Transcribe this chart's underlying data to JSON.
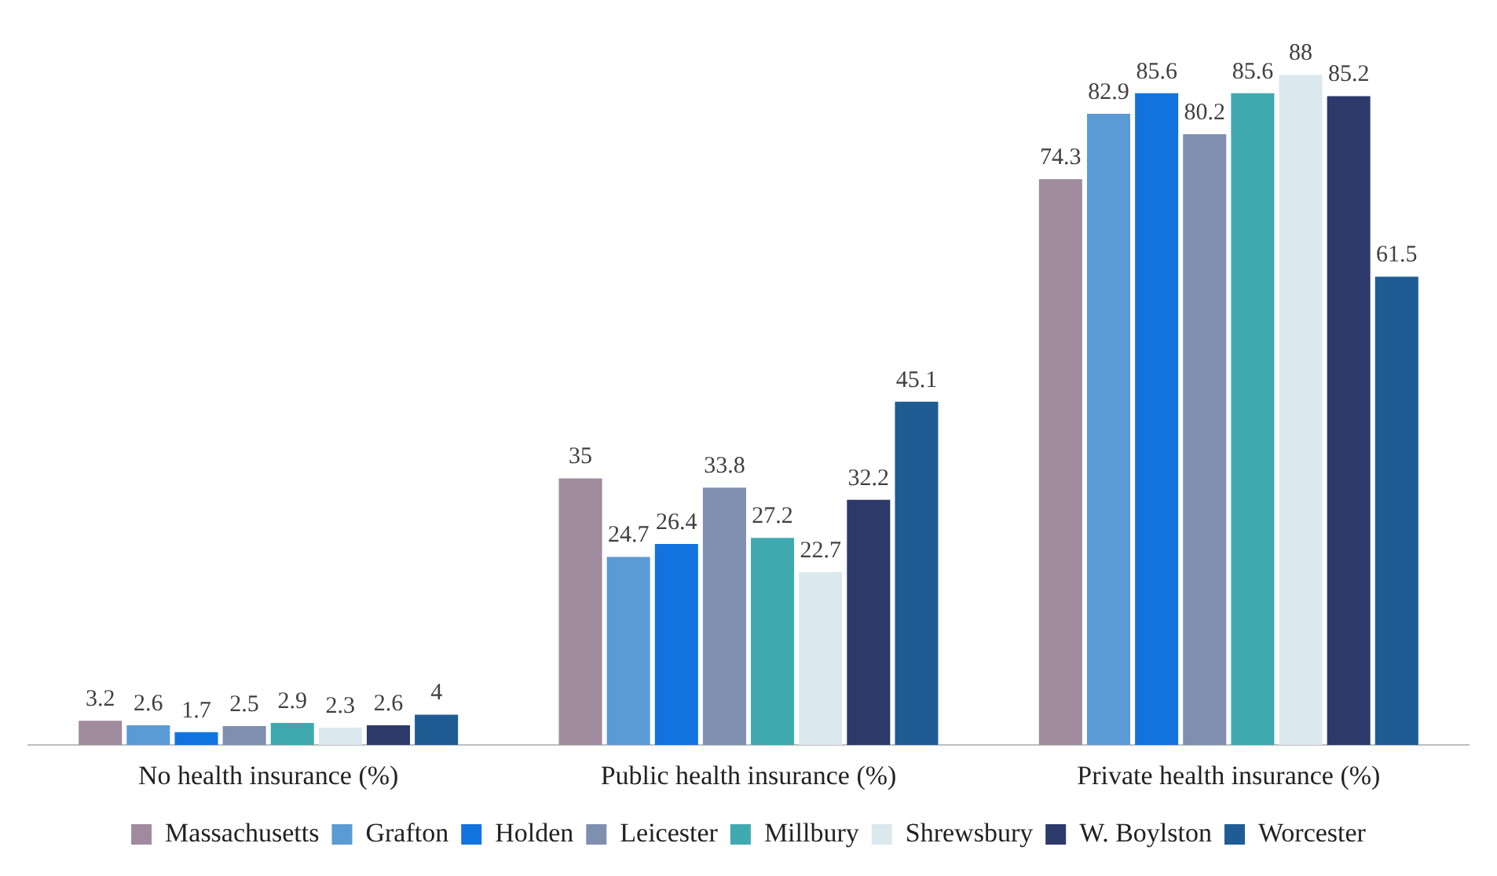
{
  "chart_data": {
    "type": "bar",
    "categories": [
      "No health insurance (%)",
      "Public health insurance (%)",
      "Private health insurance (%)"
    ],
    "series": [
      {
        "name": "Massachusetts",
        "color": "#a08a9e",
        "values": [
          3.2,
          35,
          74.3
        ]
      },
      {
        "name": "Grafton",
        "color": "#5b9bd5",
        "values": [
          2.6,
          24.7,
          82.9
        ]
      },
      {
        "name": "Holden",
        "color": "#1273de",
        "values": [
          1.7,
          26.4,
          85.6
        ]
      },
      {
        "name": "Leicester",
        "color": "#7f8fb0",
        "values": [
          2.5,
          33.8,
          80.2
        ]
      },
      {
        "name": "Millbury",
        "color": "#3fa9b0",
        "values": [
          2.9,
          27.2,
          85.6
        ]
      },
      {
        "name": "Shrewsbury",
        "color": "#dbe8ee",
        "values": [
          2.3,
          22.7,
          88
        ]
      },
      {
        "name": "W. Boylston",
        "color": "#2c3a6b",
        "values": [
          2.6,
          32.2,
          85.2
        ]
      },
      {
        "name": "Worcester",
        "color": "#1f5c94",
        "values": [
          4,
          45.1,
          61.5
        ]
      }
    ],
    "data_labels": true,
    "legend": "bottom",
    "grid": false
  }
}
